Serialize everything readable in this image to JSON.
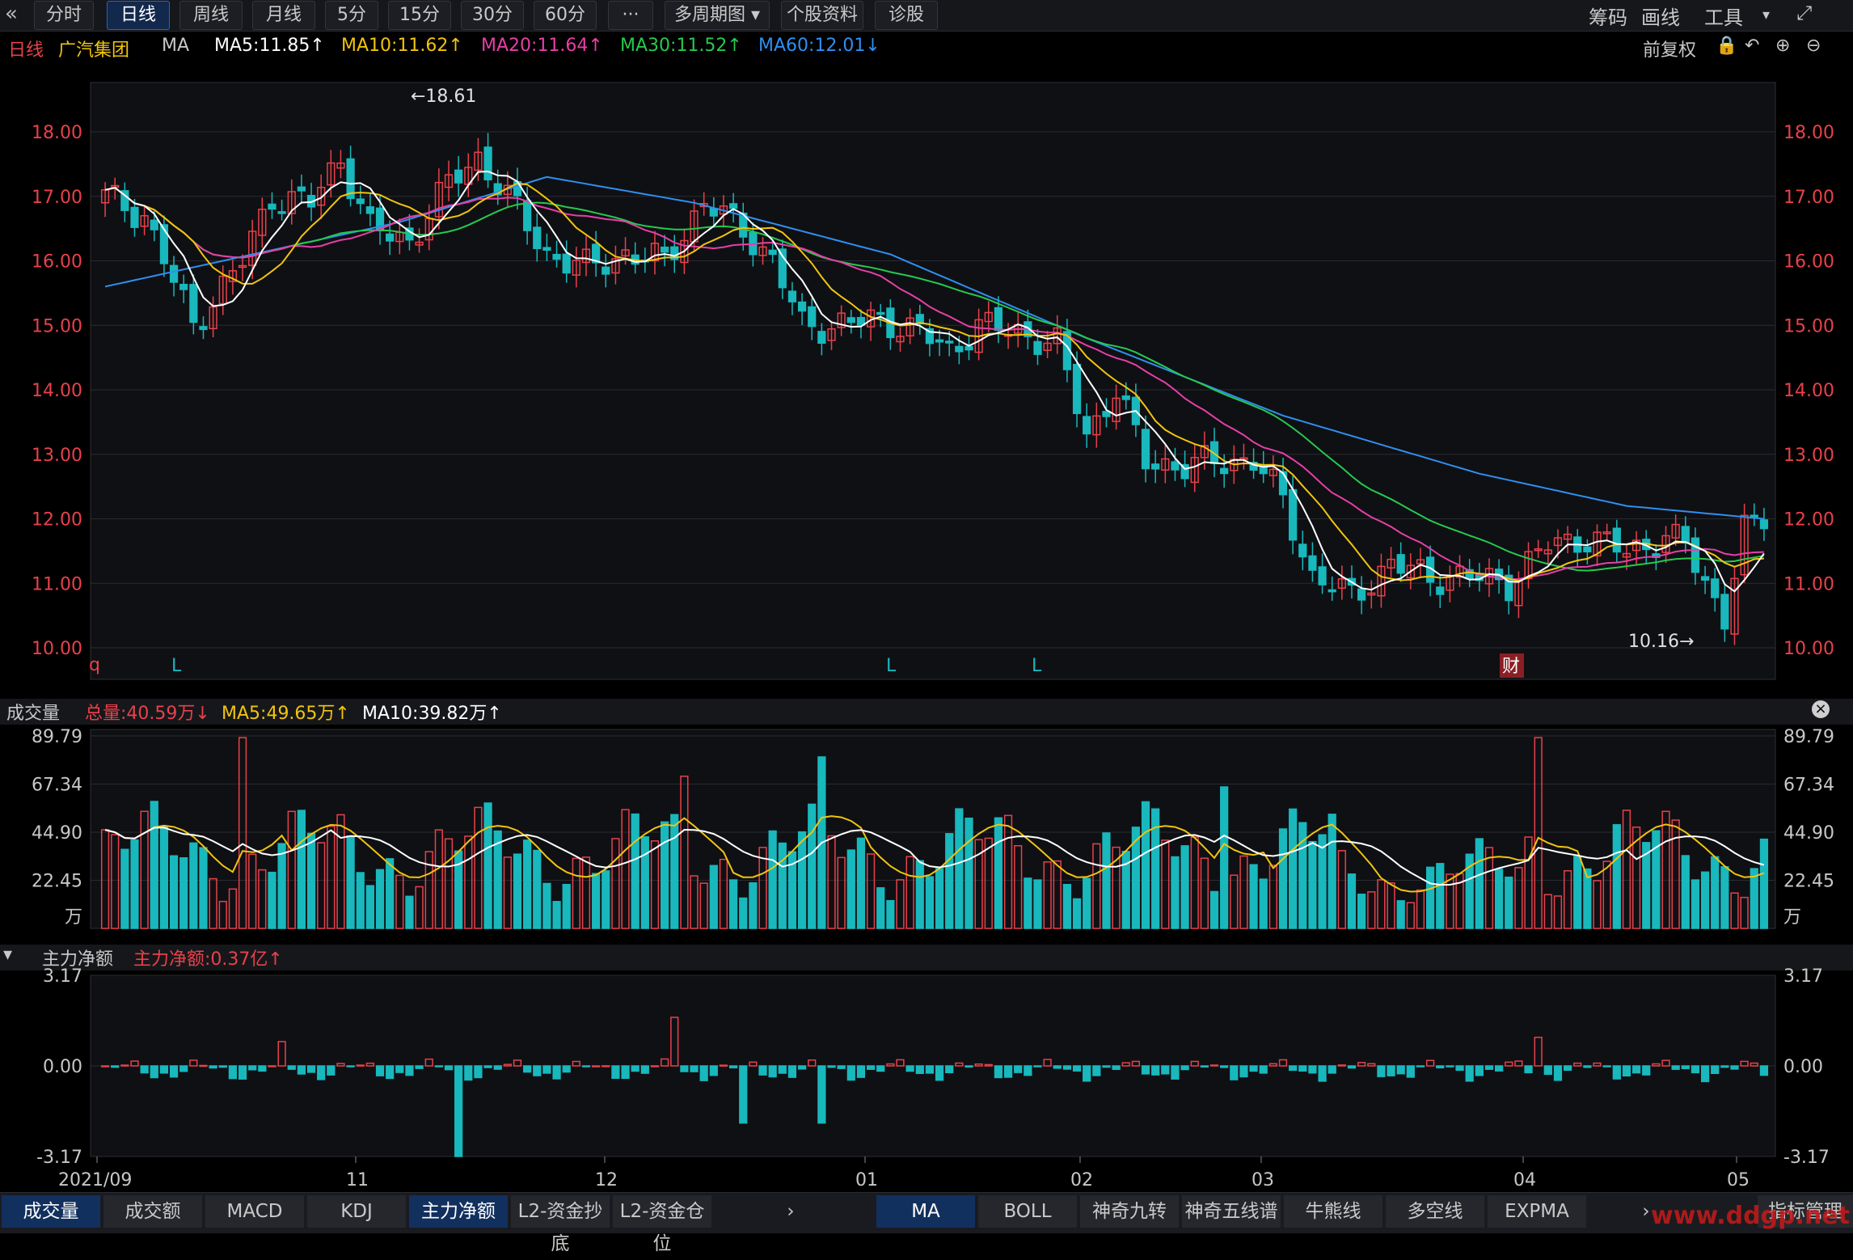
{
  "toolbar": {
    "tabs": [
      "分时",
      "日线",
      "周线",
      "月线",
      "5分",
      "15分",
      "30分",
      "60分",
      "···",
      "多周期图 ▾",
      "个股资料",
      "诊股"
    ],
    "active_index": 1,
    "right": [
      "筹码",
      "画线",
      "工具",
      "▾"
    ]
  },
  "info": {
    "period": "日线",
    "name": "广汽集团",
    "ind": "MA",
    "ma5": "MA5:11.85↑",
    "ma10": "MA10:11.62↑",
    "ma20": "MA20:11.64↑",
    "ma30": "MA30:11.52↑",
    "ma60": "MA60:12.01↓",
    "fq": "前复权"
  },
  "vol_panel": {
    "title": "成交量",
    "total": "总量:40.59万↓",
    "ma5": "MA5:49.65万↑",
    "ma10": "MA10:39.82万↑"
  },
  "flow_panel": {
    "title": "主力净额",
    "value": "主力净额:0.37亿↑"
  },
  "price_axis": [
    "18.00",
    "17.00",
    "16.00",
    "15.00",
    "14.00",
    "13.00",
    "12.00",
    "11.00",
    "10.00"
  ],
  "vol_axis": [
    "89.79",
    "67.34",
    "44.90",
    "22.45",
    "万"
  ],
  "flow_axis": [
    "3.17",
    "0.00",
    "-3.17"
  ],
  "x_axis": [
    "2021/09",
    "11",
    "12",
    "01",
    "02",
    "03",
    "04",
    "05"
  ],
  "annotations": {
    "high": "←18.61",
    "low": "10.16→",
    "q": "q",
    "l_marks": [
      "L",
      "L",
      "L"
    ],
    "cai": "财"
  },
  "bottom_tabs": {
    "left": [
      "成交量",
      "成交额",
      "MACD",
      "KDJ",
      "主力净额",
      "L2-资金抄底",
      "L2-资金仓位"
    ],
    "left_active": [
      0,
      4
    ],
    "right": [
      "MA",
      "BOLL",
      "神奇九转",
      "神奇五线谱",
      "牛熊线",
      "多空线",
      "EXPMA"
    ],
    "right_active": 0,
    "manage": "指标管理"
  },
  "watermark": "www.ddgp.net",
  "colors": {
    "up": "#e8414a",
    "down": "#18b8bd",
    "ma5": "#ffffff",
    "ma10": "#f1c40f",
    "ma20": "#e63fa7",
    "ma30": "#26c94f",
    "ma60": "#2f8ff0",
    "accent": "#2d62c7"
  },
  "chart_data": {
    "type": "candlestick",
    "price_range": [
      10.0,
      18.0
    ],
    "high": 18.61,
    "low": 10.16,
    "anchors": [
      [
        0,
        17.0
      ],
      [
        4,
        16.7
      ],
      [
        9,
        15.0
      ],
      [
        11,
        15.4
      ],
      [
        14,
        16.0
      ],
      [
        17,
        17.0
      ],
      [
        21,
        16.9
      ],
      [
        24,
        17.6
      ],
      [
        27,
        16.5
      ],
      [
        31,
        16.3
      ],
      [
        35,
        17.2
      ],
      [
        38,
        17.6
      ],
      [
        41,
        17.0
      ],
      [
        45,
        16.1
      ],
      [
        49,
        15.9
      ],
      [
        53,
        16.1
      ],
      [
        57,
        16.0
      ],
      [
        61,
        16.9
      ],
      [
        65,
        16.5
      ],
      [
        68,
        16.0
      ],
      [
        71,
        15.0
      ],
      [
        74,
        15.0
      ],
      [
        79,
        15.1
      ],
      [
        83,
        14.9
      ],
      [
        86,
        14.6
      ],
      [
        89,
        15.0
      ],
      [
        93,
        14.9
      ],
      [
        97,
        14.7
      ],
      [
        100,
        13.3
      ],
      [
        103,
        14.0
      ],
      [
        106,
        12.9
      ],
      [
        110,
        12.8
      ],
      [
        113,
        12.9
      ],
      [
        117,
        12.9
      ],
      [
        120,
        12.3
      ],
      [
        123,
        11.1
      ],
      [
        127,
        10.8
      ],
      [
        131,
        11.3
      ],
      [
        135,
        11.1
      ],
      [
        139,
        11.1
      ],
      [
        143,
        11.0
      ],
      [
        147,
        11.6
      ],
      [
        151,
        11.7
      ],
      [
        155,
        11.5
      ],
      [
        159,
        11.7
      ],
      [
        161,
        11.6
      ],
      [
        163,
        11.0
      ],
      [
        165,
        10.5
      ],
      [
        167,
        11.8
      ],
      [
        169,
        12.0
      ]
    ],
    "ma60_anchors": [
      [
        0,
        15.6
      ],
      [
        30,
        16.6
      ],
      [
        45,
        17.3
      ],
      [
        60,
        16.9
      ],
      [
        80,
        16.1
      ],
      [
        100,
        14.8
      ],
      [
        120,
        13.6
      ],
      [
        140,
        12.7
      ],
      [
        155,
        12.2
      ],
      [
        169,
        12.0
      ]
    ],
    "vol_range": [
      0,
      89.79
    ],
    "flow_range": [
      -3.17,
      3.17
    ]
  }
}
